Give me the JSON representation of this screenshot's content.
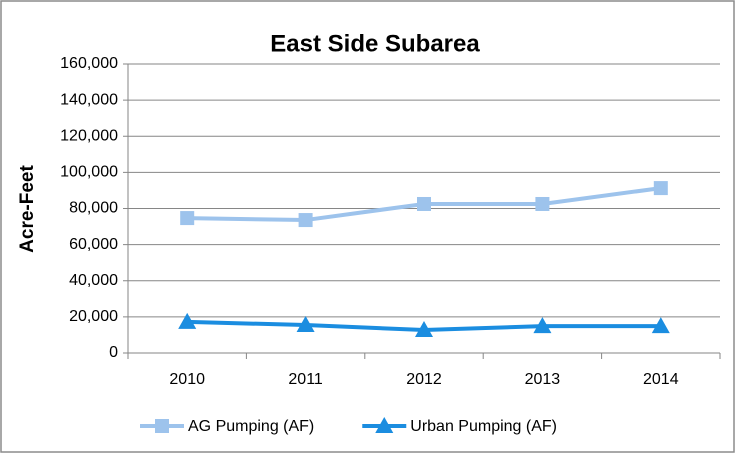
{
  "chart_data": {
    "type": "line",
    "title": "East Side Subarea",
    "y_label": "Acre-Feet",
    "categories": [
      "2010",
      "2011",
      "2012",
      "2013",
      "2014"
    ],
    "series": [
      {
        "name": "AG Pumping (AF)",
        "color": "#9dc3ec",
        "marker": "square",
        "values": [
          74700,
          73600,
          82500,
          82500,
          91300
        ]
      },
      {
        "name": "Urban Pumping (AF)",
        "color": "#1b8de0",
        "marker": "triangle",
        "values": [
          17200,
          15500,
          12700,
          14900,
          14900
        ]
      }
    ],
    "ylim": [
      0,
      160000
    ],
    "yticks": [
      0,
      {
        "value": 20000,
        "label": "20,000"
      },
      {
        "value": 40000,
        "label": "40,000"
      },
      {
        "value": 60000,
        "label": "60,000"
      },
      {
        "value": 80000,
        "label": "80,000"
      },
      {
        "value": 100000,
        "label": "100,000"
      },
      {
        "value": 120000,
        "label": "120,000"
      },
      {
        "value": 140000,
        "label": "140,000"
      },
      {
        "value": 160000,
        "label": "160,000"
      }
    ],
    "grid": true,
    "legend": "bottom"
  }
}
